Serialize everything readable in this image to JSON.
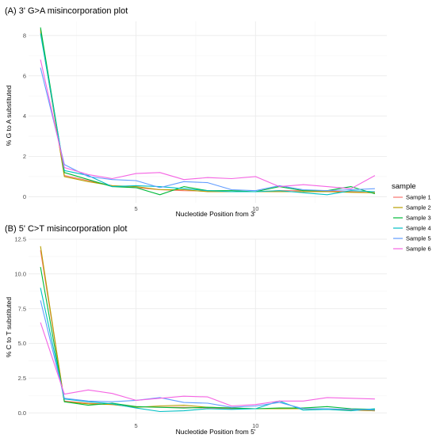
{
  "legend": {
    "title": "sample",
    "position": "right",
    "entries": [
      {
        "name": "Sample 1",
        "color": "#F8766D"
      },
      {
        "name": "Sample 2",
        "color": "#B79F00"
      },
      {
        "name": "Sample 3",
        "color": "#00BA38"
      },
      {
        "name": "Sample 4",
        "color": "#00BFC4"
      },
      {
        "name": "Sample 5",
        "color": "#619CFF"
      },
      {
        "name": "Sample 6",
        "color": "#F564E3"
      }
    ]
  },
  "chart_data": [
    {
      "type": "line",
      "title": "(A) 3' G>A misincorporation plot",
      "xlabel": "Nucleotide Position from 3'",
      "ylabel": "% G to A substituted",
      "xlim": [
        0.5,
        15.5
      ],
      "ylim": [
        -0.3,
        8.7
      ],
      "xticks": [
        5,
        10
      ],
      "yticks": [
        0,
        2,
        4,
        6,
        8
      ],
      "ytick_labels": [
        "0",
        "2",
        "4",
        "6",
        "8"
      ],
      "grid": true,
      "x": [
        1,
        2,
        3,
        4,
        5,
        6,
        7,
        8,
        9,
        10,
        11,
        12,
        13,
        14,
        15
      ],
      "series": [
        {
          "name": "Sample 1",
          "values": [
            8.2,
            1.05,
            0.8,
            0.55,
            0.45,
            0.35,
            0.3,
            0.28,
            0.25,
            0.25,
            0.3,
            0.3,
            0.28,
            0.25,
            0.2
          ]
        },
        {
          "name": "Sample 2",
          "values": [
            8.3,
            1.0,
            0.75,
            0.55,
            0.5,
            0.35,
            0.35,
            0.25,
            0.25,
            0.25,
            0.25,
            0.25,
            0.25,
            0.22,
            0.2
          ]
        },
        {
          "name": "Sample 3",
          "values": [
            8.4,
            1.2,
            0.85,
            0.5,
            0.45,
            0.1,
            0.5,
            0.3,
            0.3,
            0.25,
            0.5,
            0.3,
            0.3,
            0.5,
            0.15
          ]
        },
        {
          "name": "Sample 4",
          "values": [
            8.1,
            1.3,
            1.05,
            0.5,
            0.55,
            0.5,
            0.4,
            0.3,
            0.25,
            0.25,
            0.3,
            0.2,
            0.1,
            0.3,
            0.25
          ]
        },
        {
          "name": "Sample 5",
          "values": [
            6.4,
            1.6,
            1.0,
            0.85,
            0.8,
            0.45,
            0.75,
            0.7,
            0.35,
            0.3,
            0.55,
            0.35,
            0.3,
            0.35,
            0.4
          ]
        },
        {
          "name": "Sample 6",
          "values": [
            6.8,
            1.45,
            1.1,
            0.9,
            1.15,
            1.2,
            0.85,
            0.95,
            0.9,
            1.0,
            0.5,
            0.6,
            0.5,
            0.4,
            1.05
          ]
        }
      ]
    },
    {
      "type": "line",
      "title": "(B) 5' C>T misincorporation plot",
      "xlabel": "Nucleotide Position from 5'",
      "ylabel": "% C to T substituted",
      "xlim": [
        0.5,
        15.5
      ],
      "ylim": [
        -0.5,
        12.5
      ],
      "xticks": [
        5,
        10
      ],
      "yticks": [
        0,
        2.5,
        5,
        7.5,
        10,
        12.5
      ],
      "ytick_labels": [
        "0.0",
        "2.5",
        "5.0",
        "7.5",
        "10.0",
        "12.5"
      ],
      "grid": true,
      "x": [
        1,
        2,
        3,
        4,
        5,
        6,
        7,
        8,
        9,
        10,
        11,
        12,
        13,
        14,
        15
      ],
      "series": [
        {
          "name": "Sample 1",
          "values": [
            11.7,
            0.85,
            0.7,
            0.6,
            0.45,
            0.4,
            0.4,
            0.35,
            0.3,
            0.3,
            0.3,
            0.3,
            0.25,
            0.2,
            0.15
          ]
        },
        {
          "name": "Sample 2",
          "values": [
            12.0,
            0.8,
            0.65,
            0.6,
            0.4,
            0.5,
            0.55,
            0.4,
            0.35,
            0.3,
            0.3,
            0.3,
            0.25,
            0.2,
            0.15
          ]
        },
        {
          "name": "Sample 3",
          "values": [
            10.5,
            0.8,
            0.55,
            0.7,
            0.45,
            0.4,
            0.35,
            0.4,
            0.35,
            0.3,
            0.35,
            0.35,
            0.45,
            0.3,
            0.25
          ]
        },
        {
          "name": "Sample 4",
          "values": [
            9.0,
            1.0,
            0.8,
            0.65,
            0.35,
            0.1,
            0.15,
            0.3,
            0.25,
            0.3,
            0.85,
            0.2,
            0.25,
            0.15,
            0.3
          ]
        },
        {
          "name": "Sample 5",
          "values": [
            8.1,
            1.05,
            0.85,
            0.8,
            0.9,
            1.1,
            0.75,
            0.7,
            0.4,
            0.5,
            0.75,
            0.3,
            0.3,
            0.25,
            0.2
          ]
        },
        {
          "name": "Sample 6",
          "values": [
            6.5,
            1.35,
            1.65,
            1.4,
            0.9,
            1.05,
            1.2,
            1.15,
            0.5,
            0.6,
            0.85,
            0.85,
            1.1,
            1.05,
            1.0
          ]
        }
      ]
    }
  ]
}
